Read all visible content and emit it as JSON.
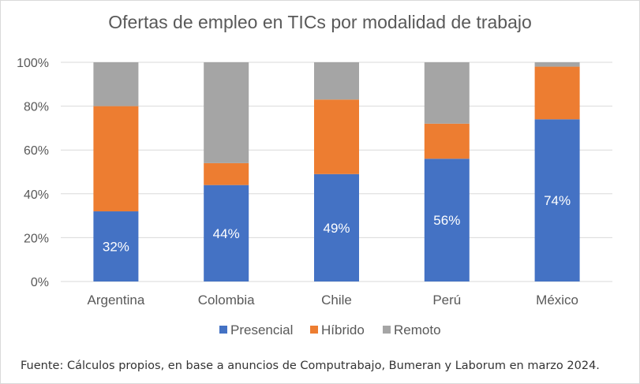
{
  "chart_data": {
    "type": "bar",
    "stacked": true,
    "title": "Ofertas de empleo en TICs por modalidad de trabajo",
    "categories": [
      "Argentina",
      "Colombia",
      "Chile",
      "Perú",
      "México"
    ],
    "series": [
      {
        "name": "Presencial",
        "values": [
          32,
          44,
          49,
          56,
          74
        ],
        "data_labels": [
          "32%",
          "44%",
          "49%",
          "56%",
          "74%"
        ]
      },
      {
        "name": "Híbrido",
        "values": [
          48,
          10,
          34,
          16,
          24
        ]
      },
      {
        "name": "Remoto",
        "values": [
          20,
          46,
          17,
          28,
          2
        ]
      }
    ],
    "ylim": [
      0,
      100
    ],
    "y_ticks": [
      "0%",
      "20%",
      "40%",
      "60%",
      "80%",
      "100%"
    ],
    "grid": true,
    "legend_position": "bottom",
    "colors": {
      "Presencial": "#4472c4",
      "Híbrido": "#ed7d31",
      "Remoto": "#a5a5a5",
      "grid": "#d9d9d9",
      "text": "#595959"
    }
  },
  "source_note": "Fuente: Cálculos propios, en base a anuncios de Computrabajo, Bumeran y Laborum en marzo 2024."
}
